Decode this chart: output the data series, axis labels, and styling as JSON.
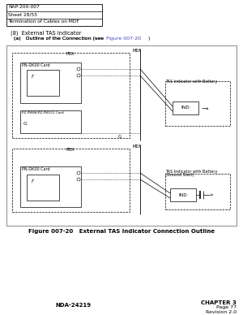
{
  "page_title_box": [
    "NAP-200-007",
    "Sheet 28/55",
    "Termination of Cables on MDF"
  ],
  "section_label": "(8)  External TAS Indicator",
  "figure_caption": "Figure 007-20   External TAS Indicator Connection Outline",
  "footer_left": "NDA-24219",
  "footer_right_line1": "CHAPTER 3",
  "footer_right_line2": "Page 77",
  "footer_right_line3": "Revision 2.0",
  "link_color": "#4444bb",
  "bg_color": "#ffffff"
}
